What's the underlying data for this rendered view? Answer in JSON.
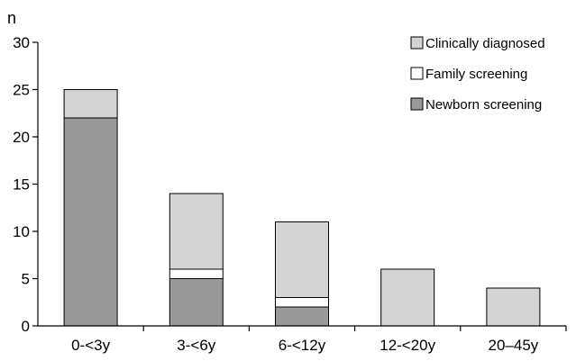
{
  "chart_data": {
    "type": "bar",
    "stacked": true,
    "ylabel": "n",
    "xlabel": "",
    "ylim": [
      0,
      30
    ],
    "yticks": [
      0,
      5,
      10,
      15,
      20,
      25,
      30
    ],
    "categories": [
      "0-<3y",
      "3-<6y",
      "6-<12y",
      "12-<20y",
      "20–45y"
    ],
    "series": [
      {
        "name": "Newborn screening",
        "values": [
          22,
          5,
          2,
          0,
          0
        ],
        "color": "#999999"
      },
      {
        "name": "Family screening",
        "values": [
          0,
          1,
          1,
          0,
          0
        ],
        "color": "#ffffff"
      },
      {
        "name": "Clinically diagnosed",
        "values": [
          3,
          8,
          8,
          6,
          4
        ],
        "color": "#d4d4d4"
      }
    ],
    "legend_order": [
      "Clinically diagnosed",
      "Family screening",
      "Newborn screening"
    ],
    "legend_position": "top-right",
    "grid": false
  }
}
